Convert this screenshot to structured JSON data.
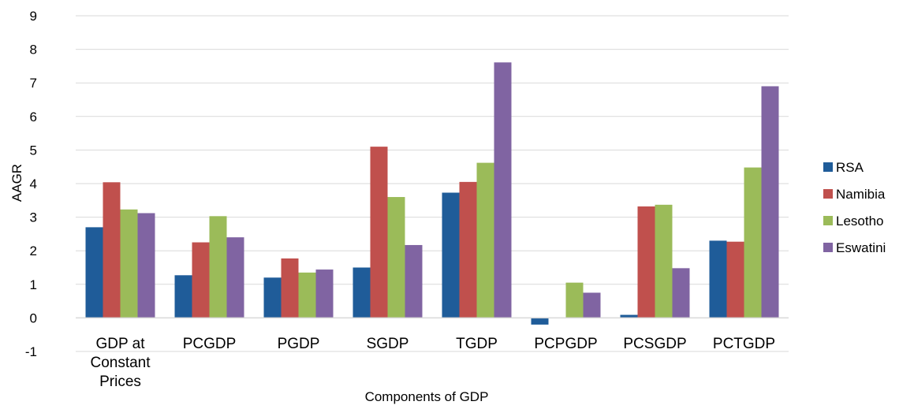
{
  "chart_data": {
    "type": "bar",
    "title": "",
    "xlabel": "Components of GDP",
    "ylabel": "AAGR",
    "ylim": [
      -1,
      9
    ],
    "yticks": [
      -1,
      0,
      1,
      2,
      3,
      4,
      5,
      6,
      7,
      8,
      9
    ],
    "grid": true,
    "legend_position": "right",
    "categories": [
      "GDP at Constant Prices",
      "PCGDP",
      "PGDP",
      "SGDP",
      "TGDP",
      "PCPGDP",
      "PCSGDP",
      "PCTGDP"
    ],
    "category_label_lines": [
      [
        "GDP at",
        "Constant",
        "Prices"
      ],
      [
        "PCGDP"
      ],
      [
        "PGDP"
      ],
      [
        "SGDP"
      ],
      [
        "TGDP"
      ],
      [
        "PCPGDP"
      ],
      [
        "PCSGDP"
      ],
      [
        "PCTGDP"
      ]
    ],
    "series": [
      {
        "name": "RSA",
        "color": "#1F5C99",
        "values": [
          2.7,
          1.27,
          1.2,
          1.5,
          3.73,
          -0.2,
          0.09,
          2.3
        ]
      },
      {
        "name": "Namibia",
        "color": "#C0504D",
        "values": [
          4.04,
          2.25,
          1.77,
          5.1,
          4.05,
          0,
          3.32,
          2.27
        ]
      },
      {
        "name": "Lesotho",
        "color": "#9BBB59",
        "values": [
          3.23,
          3.03,
          1.35,
          3.6,
          4.62,
          1.05,
          3.37,
          4.48
        ]
      },
      {
        "name": "Eswatini",
        "color": "#8064A2",
        "values": [
          3.12,
          2.4,
          1.44,
          2.17,
          7.61,
          0.75,
          1.48,
          6.9
        ]
      }
    ]
  }
}
